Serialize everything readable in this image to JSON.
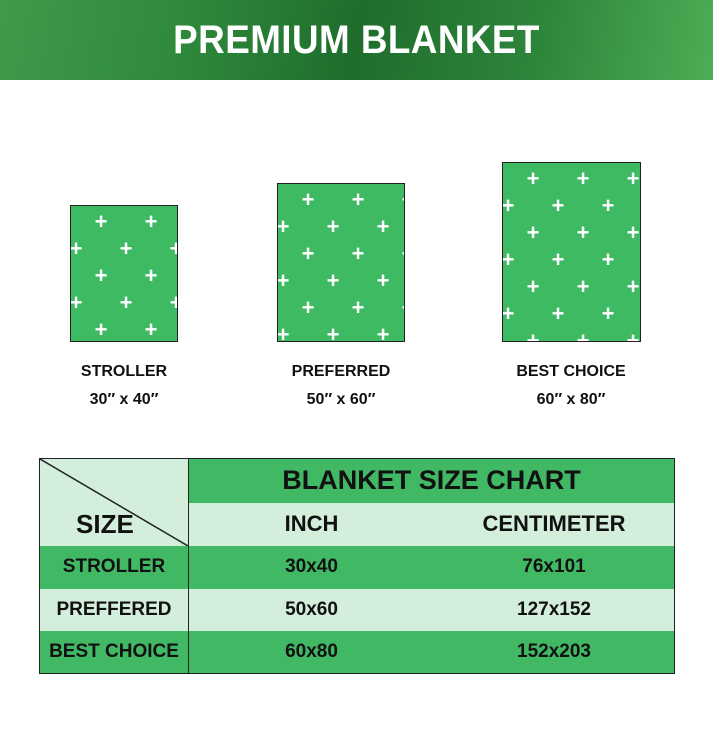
{
  "header": {
    "title": "PREMIUM BLANKET"
  },
  "blankets": [
    {
      "name": "STROLLER",
      "size": "30″ x 40″"
    },
    {
      "name": "PREFERRED",
      "size": "50″ x 60″"
    },
    {
      "name": "BEST CHOICE",
      "size": "60″ x 80″"
    }
  ],
  "colors": {
    "blanket": "#3eba63",
    "row_dark": "#41b864",
    "row_light": "#d3eedb"
  },
  "table": {
    "title": "BLANKET SIZE CHART",
    "corner_label": "SIZE",
    "columns": [
      "INCH",
      "CENTIMETER"
    ],
    "rows": [
      {
        "size": "STROLLER",
        "inch": "30x40",
        "cm": "76x101"
      },
      {
        "size": "PREFFERED",
        "inch": "50x60",
        "cm": "127x152"
      },
      {
        "size": "BEST CHOICE",
        "inch": "60x80",
        "cm": "152x203"
      }
    ]
  }
}
